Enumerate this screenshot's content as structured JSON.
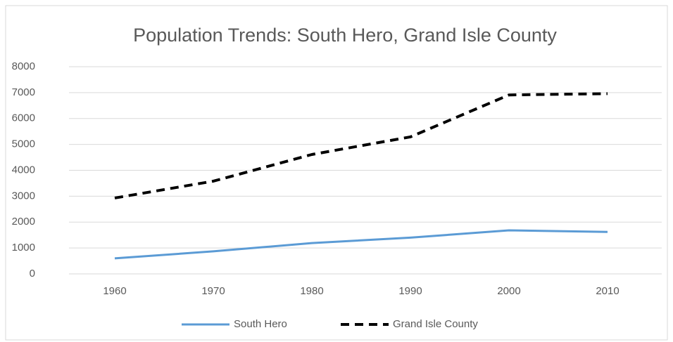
{
  "chart_data": {
    "type": "line",
    "title": "Population Trends: South Hero, Grand Isle County",
    "categories": [
      "1960",
      "1970",
      "1980",
      "1990",
      "2000",
      "2010"
    ],
    "series": [
      {
        "name": "South Hero",
        "color": "#5b9bd5",
        "dashed": false,
        "values": [
          600,
          870,
          1190,
          1400,
          1680,
          1620
        ]
      },
      {
        "name": "Grand Isle County",
        "color": "#000000",
        "dashed": true,
        "values": [
          2930,
          3580,
          4610,
          5290,
          6910,
          6960
        ]
      }
    ],
    "ylim": [
      0,
      8000
    ],
    "yticks": [
      0,
      1000,
      2000,
      3000,
      4000,
      5000,
      6000,
      7000,
      8000
    ],
    "grid": true,
    "legend": "bottom"
  }
}
